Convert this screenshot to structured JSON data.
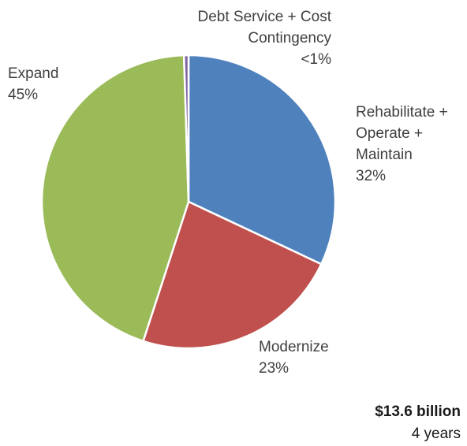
{
  "chart_data": {
    "type": "pie",
    "slices": [
      {
        "label": "Rehabilitate + Operate + Maintain",
        "pct_label": "32%",
        "value": 32,
        "color": "#4f81bd"
      },
      {
        "label": "Modernize",
        "pct_label": "23%",
        "value": 23,
        "color": "#c0504d"
      },
      {
        "label": "Expand",
        "pct_label": "45%",
        "value": 44.5,
        "color": "#9bbb59"
      },
      {
        "label": "Debt Service + Cost Contingency",
        "pct_label": "<1%",
        "value": 0.5,
        "color": "#8064a2"
      }
    ],
    "total": {
      "amount": "$13.6 billion",
      "period": "4 years"
    }
  },
  "labels": {
    "debt_line1": "Debt Service + Cost",
    "debt_line2": "Contingency",
    "rehab_line1": "Rehabilitate +",
    "rehab_line2": "Operate +",
    "rehab_line3": "Maintain"
  }
}
